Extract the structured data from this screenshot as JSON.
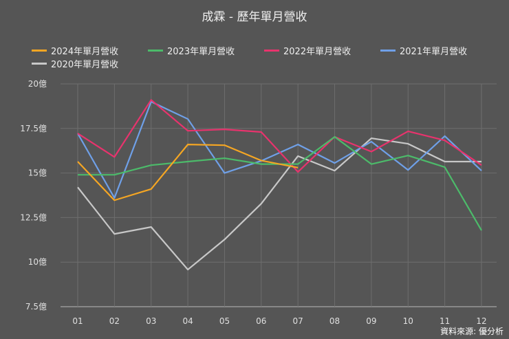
{
  "chart_data": {
    "type": "line",
    "title": "成霖 - 歷年單月營收",
    "source": "資料來源: 優分析",
    "categories": [
      "01",
      "02",
      "03",
      "04",
      "05",
      "06",
      "07",
      "08",
      "09",
      "10",
      "11",
      "12"
    ],
    "yticks": [
      "7.5億",
      "10億",
      "12.5億",
      "15億",
      "17.5億",
      "20億"
    ],
    "ylim": [
      7.5,
      20
    ],
    "yunit": "億",
    "grid": true,
    "legend_position": "top",
    "series": [
      {
        "name": "2024年單月營收",
        "color": "#f5a623",
        "values": [
          15.64,
          13.47,
          14.1,
          16.6,
          16.56,
          15.7,
          15.3,
          null,
          null,
          null,
          null,
          null
        ]
      },
      {
        "name": "2023年單月營收",
        "color": "#4cbb6a",
        "values": [
          14.9,
          14.9,
          15.44,
          15.64,
          15.83,
          15.5,
          15.5,
          17.03,
          15.5,
          15.98,
          15.33,
          11.78
        ]
      },
      {
        "name": "2022年單月營收",
        "color": "#e8336d",
        "values": [
          17.22,
          15.9,
          19.1,
          17.37,
          17.45,
          17.3,
          15.06,
          17.03,
          16.2,
          17.34,
          16.83,
          15.44
        ]
      },
      {
        "name": "2021年單月營收",
        "color": "#6fa0e8",
        "values": [
          17.22,
          13.6,
          19.0,
          18.03,
          15.0,
          15.68,
          16.6,
          15.56,
          16.76,
          15.17,
          17.07,
          15.13
        ]
      },
      {
        "name": "2020年單月營收",
        "color": "#c8c8c8",
        "values": [
          14.2,
          11.58,
          11.97,
          9.58,
          11.27,
          13.28,
          15.95,
          15.13,
          16.95,
          16.64,
          15.64,
          15.64
        ]
      }
    ]
  }
}
